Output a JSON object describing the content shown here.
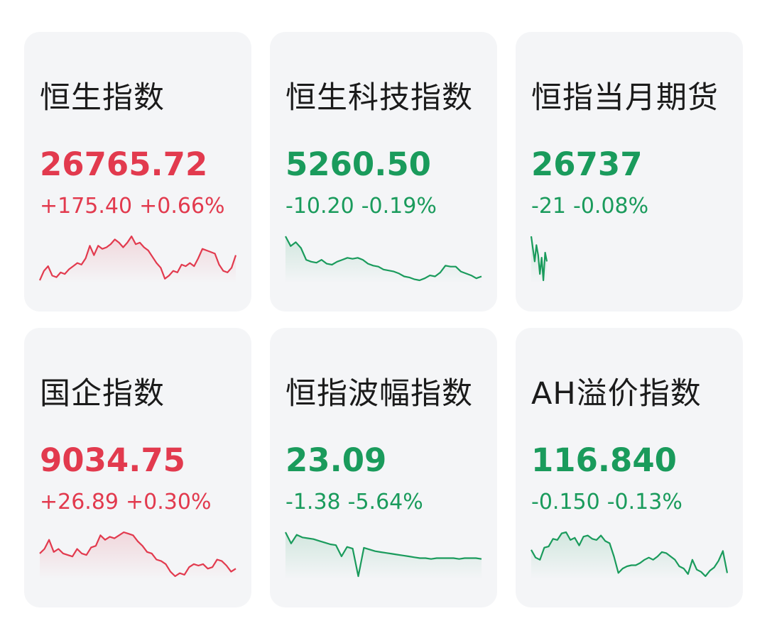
{
  "colors": {
    "up": "#e23a4e",
    "down": "#1a9b5c"
  },
  "cards": [
    {
      "title": "恒生指数",
      "price": "26765.72",
      "change": "+175.40",
      "pct": "+0.66%",
      "trend": "up",
      "chart_data": {
        "type": "line",
        "values": [
          3,
          9,
          12,
          6,
          5,
          8,
          7,
          10,
          12,
          14,
          13,
          17,
          25,
          19,
          25,
          23,
          24,
          26,
          29,
          27,
          24,
          27,
          31,
          26,
          27,
          24,
          22,
          18,
          14,
          11,
          4,
          6,
          9,
          8,
          13,
          12,
          14,
          12,
          17,
          23,
          22,
          21,
          20,
          13,
          9,
          8,
          11,
          19
        ]
      }
    },
    {
      "title": "恒生科技指数",
      "price": "5260.50",
      "change": "-10.20",
      "pct": "-0.19%",
      "trend": "down",
      "chart_data": {
        "type": "line",
        "values": [
          48,
          38,
          42,
          36,
          24,
          22,
          21,
          24,
          20,
          19,
          22,
          24,
          26,
          25,
          26,
          24,
          20,
          18,
          17,
          14,
          13,
          12,
          10,
          7,
          6,
          4,
          3,
          5,
          8,
          7,
          11,
          18,
          17,
          17,
          12,
          10,
          8,
          5,
          7
        ]
      }
    },
    {
      "title": "恒指当月期货",
      "price": "26737",
      "change": "-21",
      "pct": "-0.08%",
      "trend": "down",
      "chart_data": {
        "type": "line",
        "values": [
          55,
          45,
          35,
          48,
          40,
          25,
          38,
          20,
          42,
          35
        ]
      }
    },
    {
      "title": "国企指数",
      "price": "9034.75",
      "change": "+26.89",
      "pct": "+0.30%",
      "trend": "up",
      "chart_data": {
        "type": "line",
        "values": [
          15,
          18,
          24,
          16,
          18,
          15,
          14,
          13,
          18,
          15,
          14,
          19,
          20,
          27,
          24,
          26,
          25,
          27,
          29,
          28,
          27,
          23,
          20,
          16,
          15,
          11,
          10,
          8,
          3,
          0,
          2,
          1,
          6,
          8,
          7,
          8,
          5,
          6,
          11,
          10,
          7,
          3,
          5
        ]
      }
    },
    {
      "title": "恒指波幅指数",
      "price": "23.09",
      "change": "-1.38",
      "pct": "-5.64%",
      "trend": "down",
      "chart_data": {
        "type": "line",
        "values": [
          54,
          41,
          51,
          48,
          47,
          46,
          44,
          42,
          40,
          39,
          26,
          37,
          35,
          3,
          36,
          34,
          32,
          31,
          30,
          29,
          28,
          27,
          26,
          25,
          24,
          24,
          23,
          24,
          24,
          24,
          24,
          23,
          24,
          24,
          24,
          23
        ]
      }
    },
    {
      "title": "AH溢价指数",
      "price": "116.840",
      "change": "-0.150",
      "pct": "-0.13%",
      "trend": "down",
      "chart_data": {
        "type": "line",
        "values": [
          24,
          17,
          15,
          26,
          27,
          34,
          33,
          39,
          40,
          33,
          35,
          28,
          36,
          37,
          34,
          33,
          37,
          32,
          30,
          18,
          3,
          7,
          9,
          10,
          10,
          12,
          15,
          17,
          15,
          18,
          22,
          21,
          18,
          15,
          9,
          7,
          2,
          15,
          6,
          4,
          0,
          5,
          8,
          14,
          23,
          3
        ]
      }
    }
  ]
}
